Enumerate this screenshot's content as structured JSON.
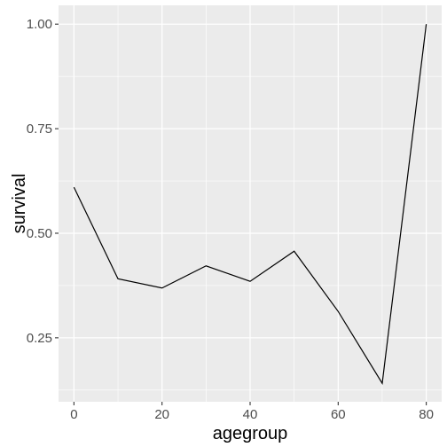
{
  "chart_data": {
    "type": "line",
    "xlabel": "agegroup",
    "ylabel": "survival",
    "x": [
      0,
      10,
      20,
      30,
      40,
      50,
      60,
      70,
      80
    ],
    "series": [
      {
        "values": [
          0.61,
          0.391,
          0.369,
          0.422,
          0.385,
          0.457,
          0.313,
          0.141,
          1.0
        ]
      }
    ],
    "xlim": [
      -3.5,
      83.5
    ],
    "ylim": [
      0.097,
      1.045
    ],
    "xticks": [
      0,
      20,
      40,
      60,
      80
    ],
    "xtick_labels": [
      "0",
      "20",
      "40",
      "60",
      "80"
    ],
    "yticks": [
      0.25,
      0.5,
      0.75,
      1.0
    ],
    "ytick_labels": [
      "0.25",
      "0.50",
      "0.75",
      "1.00"
    ],
    "x_minor": [
      10,
      30,
      50,
      70
    ],
    "y_minor": [
      0.125,
      0.375,
      0.625,
      0.875
    ],
    "grid": true,
    "panel_color": "#ebebeb",
    "grid_color": "#ffffff",
    "line_color": "#000000"
  }
}
